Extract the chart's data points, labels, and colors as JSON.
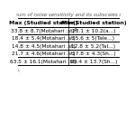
{
  "title_line1": "inimum of noise sensitivity and its subscales scor",
  "col_headers": [
    "Max (Studied station)",
    "Min(Studied station)"
  ],
  "rows": [
    [
      "33.8 ± 8.7(Motahari .st)²",
      "28.1 ± 10.2(a...)"
    ],
    [
      "18.4 ± 5.4(Motahari .st)",
      "15.6 ± 5(Tale...)"
    ],
    [
      "14.8 ± 4.5(Motahari .st)",
      "12.8 ± 5.2(Tal...)"
    ],
    [
      "21.7 ± 4.6(Motahari .st)",
      "17.8 ± 4.3(Sh...)"
    ],
    [
      "63.5 ± 16.1(Motahari .st)",
      "59.4 ± 13.7(Sh...)"
    ]
  ],
  "background_color": "#ffffff",
  "table_text_color": "#000000",
  "font_size": 4.2,
  "title_font_size": 4.0,
  "header_font_size": 4.5
}
